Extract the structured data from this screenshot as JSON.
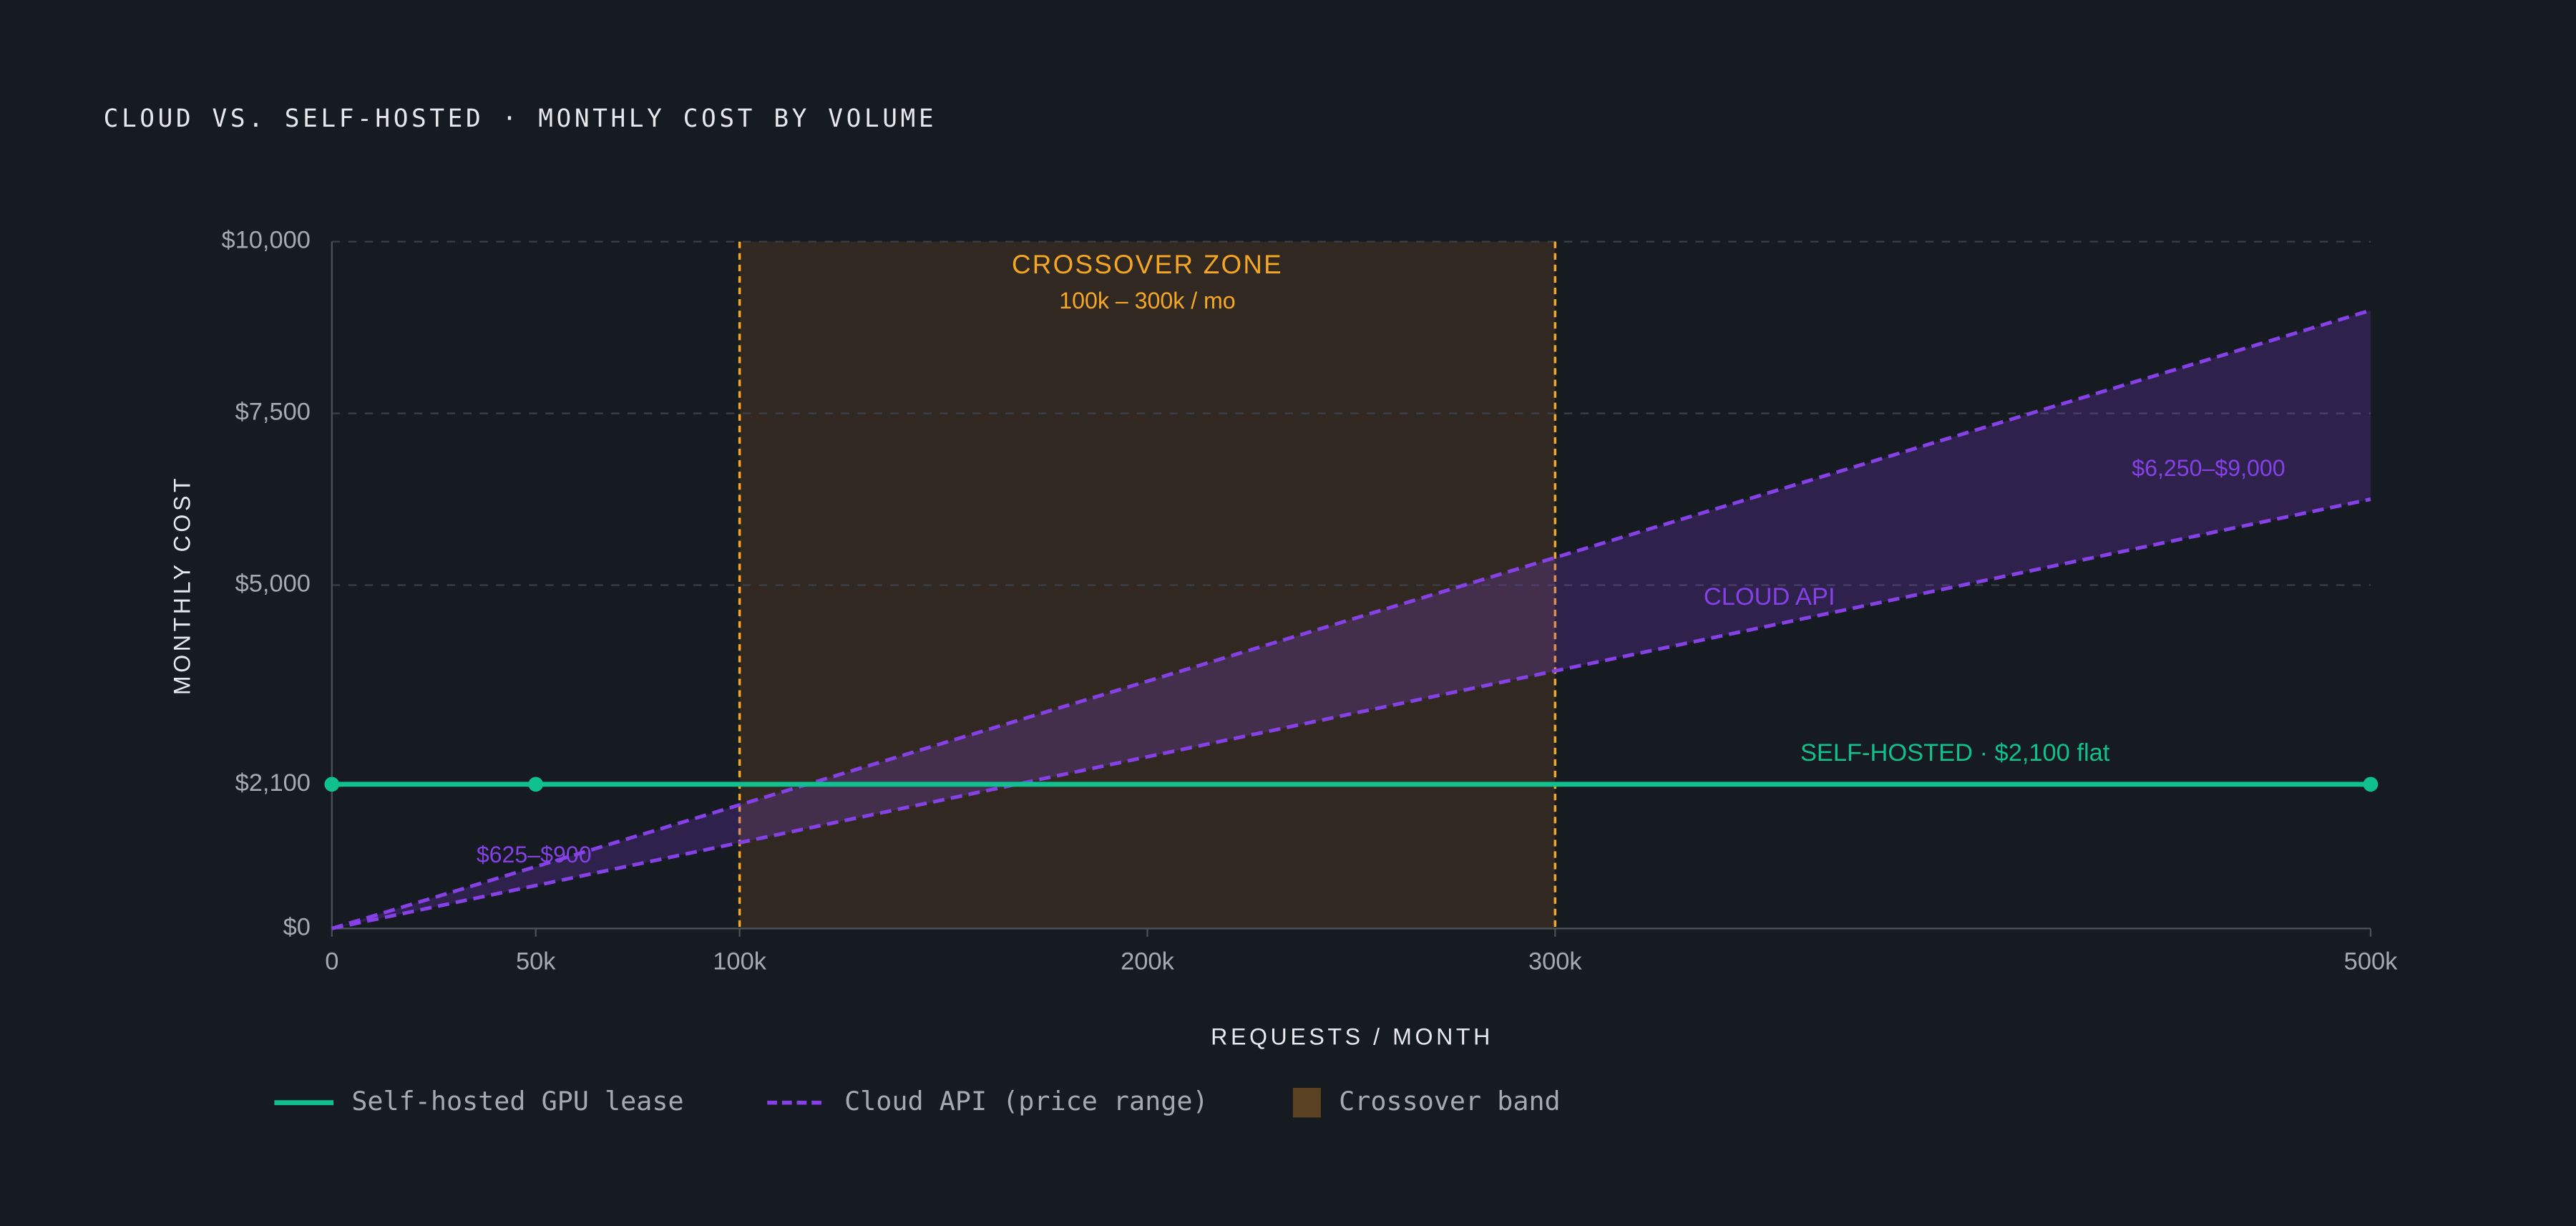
{
  "chart_data": {
    "type": "line",
    "title": "CLOUD VS. SELF-HOSTED · MONTHLY COST BY VOLUME",
    "xlabel": "REQUESTS / MONTH",
    "ylabel": "MONTHLY COST",
    "xlim": [
      0,
      500000
    ],
    "ylim": [
      0,
      10000
    ],
    "xticks": [
      {
        "value": 0,
        "label": "0"
      },
      {
        "value": 50000,
        "label": "50k"
      },
      {
        "value": 100000,
        "label": "100k"
      },
      {
        "value": 200000,
        "label": "200k"
      },
      {
        "value": 300000,
        "label": "300k"
      },
      {
        "value": 500000,
        "label": "500k"
      }
    ],
    "yticks": [
      {
        "value": 0,
        "label": "$0"
      },
      {
        "value": 2100,
        "label": "$2,100"
      },
      {
        "value": 5000,
        "label": "$5,000"
      },
      {
        "value": 7500,
        "label": "$7,500"
      },
      {
        "value": 10000,
        "label": "$10,000"
      }
    ],
    "grid": true,
    "legend": "bottom",
    "series": [
      {
        "name": "Self-hosted GPU lease",
        "color": "#10c08e",
        "x": [
          0,
          50000,
          500000
        ],
        "values": [
          2100,
          2100,
          2100
        ]
      },
      {
        "name": "Cloud API (price range)",
        "color": "#8540e6",
        "x": [
          0,
          500000
        ],
        "low": [
          0,
          6250
        ],
        "high": [
          0,
          9000
        ]
      }
    ],
    "crossover": {
      "name": "Crossover band",
      "color": "#5a4222",
      "range": [
        100000,
        300000
      ],
      "title": "CROSSOVER ZONE",
      "subtitle": "100k – 300k / mo"
    },
    "annotations": [
      "$625–$900",
      "$6,250–$9,000",
      "CLOUD API",
      "SELF-HOSTED · $2,100 flat"
    ]
  }
}
